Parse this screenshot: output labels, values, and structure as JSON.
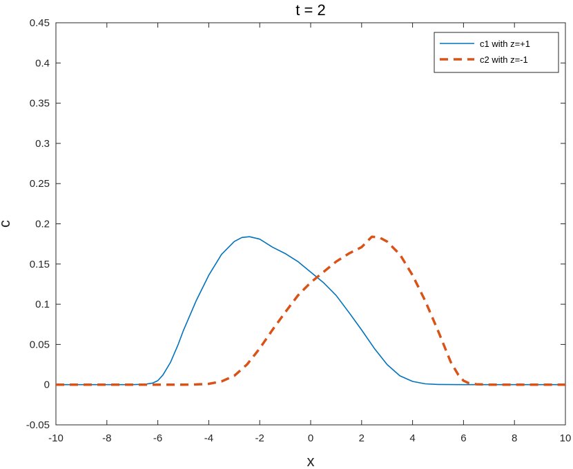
{
  "chart_data": {
    "type": "line",
    "title": "t = 2",
    "xlabel": "x",
    "ylabel": "c",
    "xlim": [
      -10,
      10
    ],
    "ylim": [
      -0.05,
      0.45
    ],
    "xticks": [
      -10,
      -8,
      -6,
      -4,
      -2,
      0,
      2,
      4,
      6,
      8,
      10
    ],
    "xtick_labels": [
      "-10",
      "-8",
      "-6",
      "-4",
      "-2",
      "0",
      "2",
      "4",
      "6",
      "8",
      "10"
    ],
    "yticks": [
      -0.05,
      0,
      0.05,
      0.1,
      0.15,
      0.2,
      0.25,
      0.3,
      0.35,
      0.4,
      0.45
    ],
    "ytick_labels": [
      "-0.05",
      "0",
      "0.05",
      "0.1",
      "0.15",
      "0.2",
      "0.25",
      "0.3",
      "0.35",
      "0.4",
      "0.45"
    ],
    "grid": false,
    "legend_position": "top-right",
    "series": [
      {
        "name": "c1 with z=+1",
        "color": "#0072BD",
        "style": "solid",
        "x": [
          -10,
          -9,
          -8,
          -7,
          -6.5,
          -6.2,
          -6,
          -5.8,
          -5.5,
          -5.2,
          -5,
          -4.5,
          -4,
          -3.5,
          -3,
          -2.7,
          -2.4,
          -2,
          -1.5,
          -1,
          -0.5,
          0,
          0.5,
          1,
          1.5,
          2,
          2.5,
          3,
          3.5,
          4,
          4.5,
          5,
          6,
          7,
          8,
          9,
          10
        ],
        "y": [
          0,
          0,
          0,
          0,
          0.0005,
          0.002,
          0.005,
          0.012,
          0.028,
          0.05,
          0.067,
          0.104,
          0.136,
          0.162,
          0.178,
          0.183,
          0.184,
          0.181,
          0.171,
          0.163,
          0.153,
          0.14,
          0.127,
          0.111,
          0.09,
          0.068,
          0.045,
          0.025,
          0.011,
          0.004,
          0.001,
          0.0003,
          0,
          0,
          0,
          0,
          0
        ]
      },
      {
        "name": "c2 with z=-1",
        "color": "#D95319",
        "style": "dashed",
        "x": [
          -10,
          -9,
          -8,
          -7,
          -6,
          -5,
          -4.5,
          -4,
          -3.5,
          -3,
          -2.5,
          -2,
          -1.5,
          -1,
          -0.5,
          0,
          0.5,
          1,
          1.5,
          2,
          2.4,
          2.7,
          3,
          3.5,
          4,
          4.5,
          5,
          5.5,
          5.8,
          6,
          6.2,
          6.5,
          7,
          8,
          9,
          10
        ],
        "y": [
          0,
          0,
          0,
          0,
          0,
          0,
          0.0003,
          0.001,
          0.004,
          0.011,
          0.025,
          0.045,
          0.068,
          0.09,
          0.111,
          0.127,
          0.14,
          0.153,
          0.163,
          0.171,
          0.184,
          0.183,
          0.178,
          0.162,
          0.136,
          0.104,
          0.067,
          0.028,
          0.012,
          0.005,
          0.002,
          0.0005,
          0,
          0,
          0,
          0
        ]
      }
    ]
  }
}
